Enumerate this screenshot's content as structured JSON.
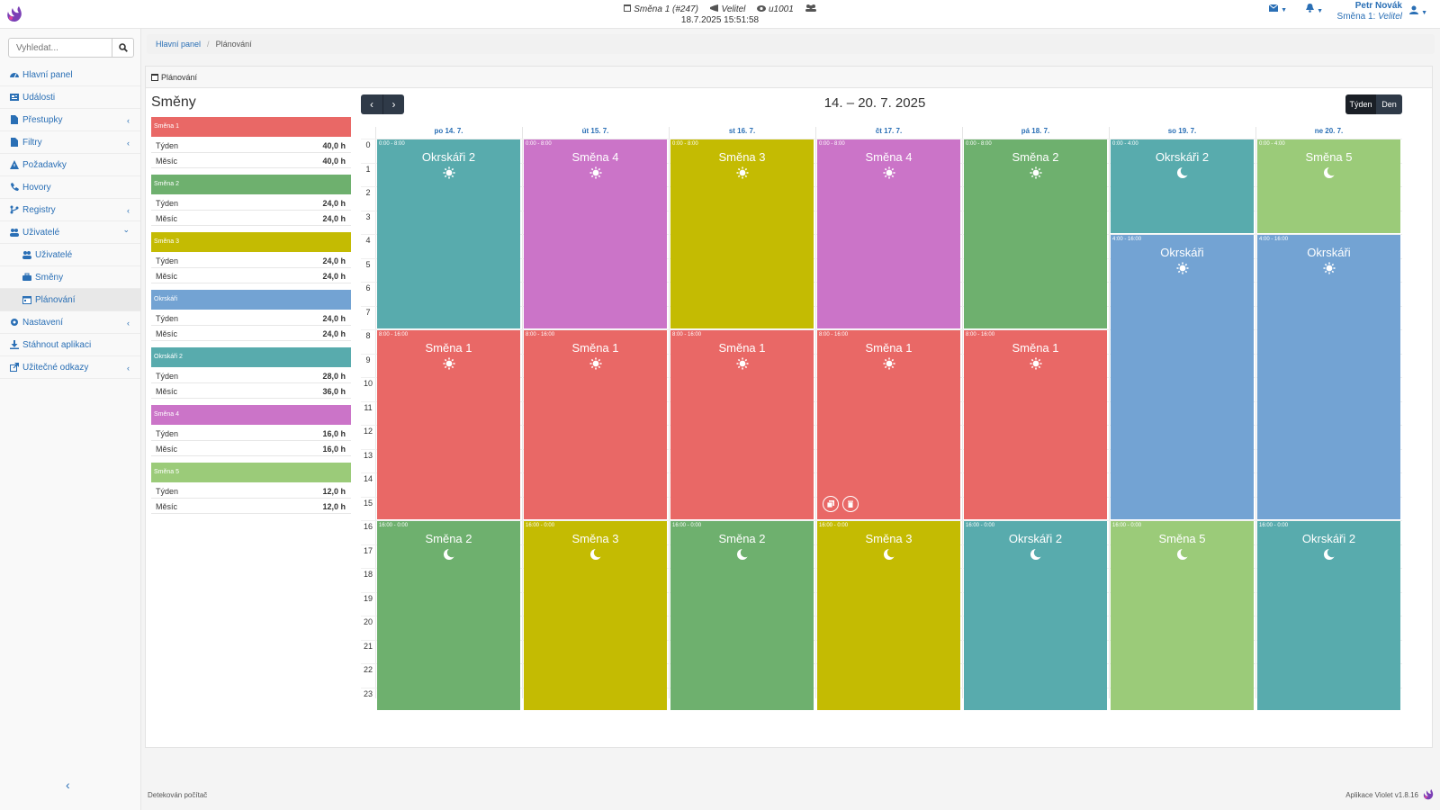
{
  "topbar": {
    "shift_label": "Směna 1 (#247)",
    "role": "Velitel",
    "watcher": "u1001",
    "datetime": "18.7.2025 15:51:58",
    "user_name": "Petr Novák",
    "user_shift_prefix": "Směna 1:",
    "user_role": "Velitel"
  },
  "sidebar": {
    "search_placeholder": "Vyhledat...",
    "items": [
      {
        "label": "Hlavní panel",
        "icon": "dashboard-icon"
      },
      {
        "label": "Události",
        "icon": "newspaper-icon"
      },
      {
        "label": "Přestupky",
        "icon": "file-icon",
        "chevron": "left"
      },
      {
        "label": "Filtry",
        "icon": "file-icon",
        "chevron": "left"
      },
      {
        "label": "Požadavky",
        "icon": "warning-icon"
      },
      {
        "label": "Hovory",
        "icon": "phone-icon"
      },
      {
        "label": "Registry",
        "icon": "branch-icon",
        "chevron": "left"
      },
      {
        "label": "Uživatelé",
        "icon": "users-icon",
        "chevron": "down"
      },
      {
        "label": "Uživatelé",
        "icon": "users-icon",
        "sub": true
      },
      {
        "label": "Směny",
        "icon": "briefcase-icon",
        "sub": true
      },
      {
        "label": "Plánování",
        "icon": "calendar-icon",
        "sub": true,
        "active": true
      },
      {
        "label": "Nastavení",
        "icon": "cog-icon",
        "chevron": "left"
      },
      {
        "label": "Stáhnout aplikaci",
        "icon": "download-icon"
      },
      {
        "label": "Užitečné odkazy",
        "icon": "external-link-icon",
        "chevron": "left"
      }
    ]
  },
  "breadcrumb": {
    "home": "Hlavní panel",
    "current": "Plánování"
  },
  "panel_title": "Plánování",
  "shifts_title": "Směny",
  "row_labels": {
    "week": "Týden",
    "month": "Měsíc"
  },
  "shifts": [
    {
      "name": "Směna 1",
      "color": "#e96866",
      "week": "40,0 h",
      "month": "40,0 h"
    },
    {
      "name": "Směna 2",
      "color": "#6eb06e",
      "week": "24,0 h",
      "month": "24,0 h"
    },
    {
      "name": "Směna 3",
      "color": "#c4bb02",
      "week": "24,0 h",
      "month": "24,0 h"
    },
    {
      "name": "Okrskáři",
      "color": "#73a3d3",
      "week": "24,0 h",
      "month": "24,0 h"
    },
    {
      "name": "Okrskáři 2",
      "color": "#58abad",
      "week": "28,0 h",
      "month": "36,0 h"
    },
    {
      "name": "Směna 4",
      "color": "#cb74c8",
      "week": "16,0 h",
      "month": "16,0 h"
    },
    {
      "name": "Směna 5",
      "color": "#9bcb79",
      "week": "12,0 h",
      "month": "12,0 h"
    }
  ],
  "calendar": {
    "title": "14. – 20. 7. 2025",
    "view_week": "Týden",
    "view_day": "Den",
    "days": [
      "po 14. 7.",
      "út 15. 7.",
      "st 16. 7.",
      "čt 17. 7.",
      "pá 18. 7.",
      "so 19. 7.",
      "ne 20. 7."
    ],
    "hours": [
      "0",
      "1",
      "2",
      "3",
      "4",
      "5",
      "6",
      "7",
      "8",
      "9",
      "10",
      "11",
      "12",
      "13",
      "14",
      "15",
      "16",
      "17",
      "18",
      "19",
      "20",
      "21",
      "22",
      "23"
    ],
    "events": [
      {
        "day": 0,
        "start": 0,
        "end": 8,
        "time": "0:00 - 8:00",
        "shift": "Okrskáři 2",
        "icon": "sun"
      },
      {
        "day": 0,
        "start": 8,
        "end": 16,
        "time": "8:00 - 16:00",
        "shift": "Směna 1",
        "icon": "sun"
      },
      {
        "day": 0,
        "start": 16,
        "end": 24,
        "time": "16:00 - 0:00",
        "shift": "Směna 2",
        "icon": "moon"
      },
      {
        "day": 1,
        "start": 0,
        "end": 8,
        "time": "0:00 - 8:00",
        "shift": "Směna 4",
        "icon": "sun"
      },
      {
        "day": 1,
        "start": 8,
        "end": 16,
        "time": "8:00 - 16:00",
        "shift": "Směna 1",
        "icon": "sun"
      },
      {
        "day": 1,
        "start": 16,
        "end": 24,
        "time": "16:00 - 0:00",
        "shift": "Směna 3",
        "icon": "moon"
      },
      {
        "day": 2,
        "start": 0,
        "end": 8,
        "time": "0:00 - 8:00",
        "shift": "Směna 3",
        "icon": "sun"
      },
      {
        "day": 2,
        "start": 8,
        "end": 16,
        "time": "8:00 - 16:00",
        "shift": "Směna 1",
        "icon": "sun"
      },
      {
        "day": 2,
        "start": 16,
        "end": 24,
        "time": "16:00 - 0:00",
        "shift": "Směna 2",
        "icon": "moon"
      },
      {
        "day": 3,
        "start": 0,
        "end": 8,
        "time": "0:00 - 8:00",
        "shift": "Směna 4",
        "icon": "sun"
      },
      {
        "day": 3,
        "start": 8,
        "end": 16,
        "time": "8:00 - 16:00",
        "shift": "Směna 1",
        "icon": "sun",
        "actions": true
      },
      {
        "day": 3,
        "start": 16,
        "end": 24,
        "time": "16:00 - 0:00",
        "shift": "Směna 3",
        "icon": "moon"
      },
      {
        "day": 4,
        "start": 0,
        "end": 8,
        "time": "0:00 - 8:00",
        "shift": "Směna 2",
        "icon": "sun"
      },
      {
        "day": 4,
        "start": 8,
        "end": 16,
        "time": "8:00 - 16:00",
        "shift": "Směna 1",
        "icon": "sun"
      },
      {
        "day": 4,
        "start": 16,
        "end": 24,
        "time": "16:00 - 0:00",
        "shift": "Okrskáři 2",
        "icon": "moon"
      },
      {
        "day": 5,
        "start": 0,
        "end": 4,
        "time": "0:00 - 4:00",
        "shift": "Okrskáři 2",
        "icon": "moon"
      },
      {
        "day": 5,
        "start": 4,
        "end": 16,
        "time": "4:00 - 16:00",
        "shift": "Okrskáři",
        "icon": "sun"
      },
      {
        "day": 5,
        "start": 16,
        "end": 24,
        "time": "16:00 - 0:00",
        "shift": "Směna 5",
        "icon": "moon"
      },
      {
        "day": 6,
        "start": 0,
        "end": 4,
        "time": "0:00 - 4:00",
        "shift": "Směna 5",
        "icon": "moon"
      },
      {
        "day": 6,
        "start": 4,
        "end": 16,
        "time": "4:00 - 16:00",
        "shift": "Okrskáři",
        "icon": "sun"
      },
      {
        "day": 6,
        "start": 16,
        "end": 24,
        "time": "16:00 - 0:00",
        "shift": "Okrskáři 2",
        "icon": "moon"
      }
    ]
  },
  "footer": {
    "left": "Detekován počítač",
    "right": "Aplikace Violet v1.8.16"
  }
}
